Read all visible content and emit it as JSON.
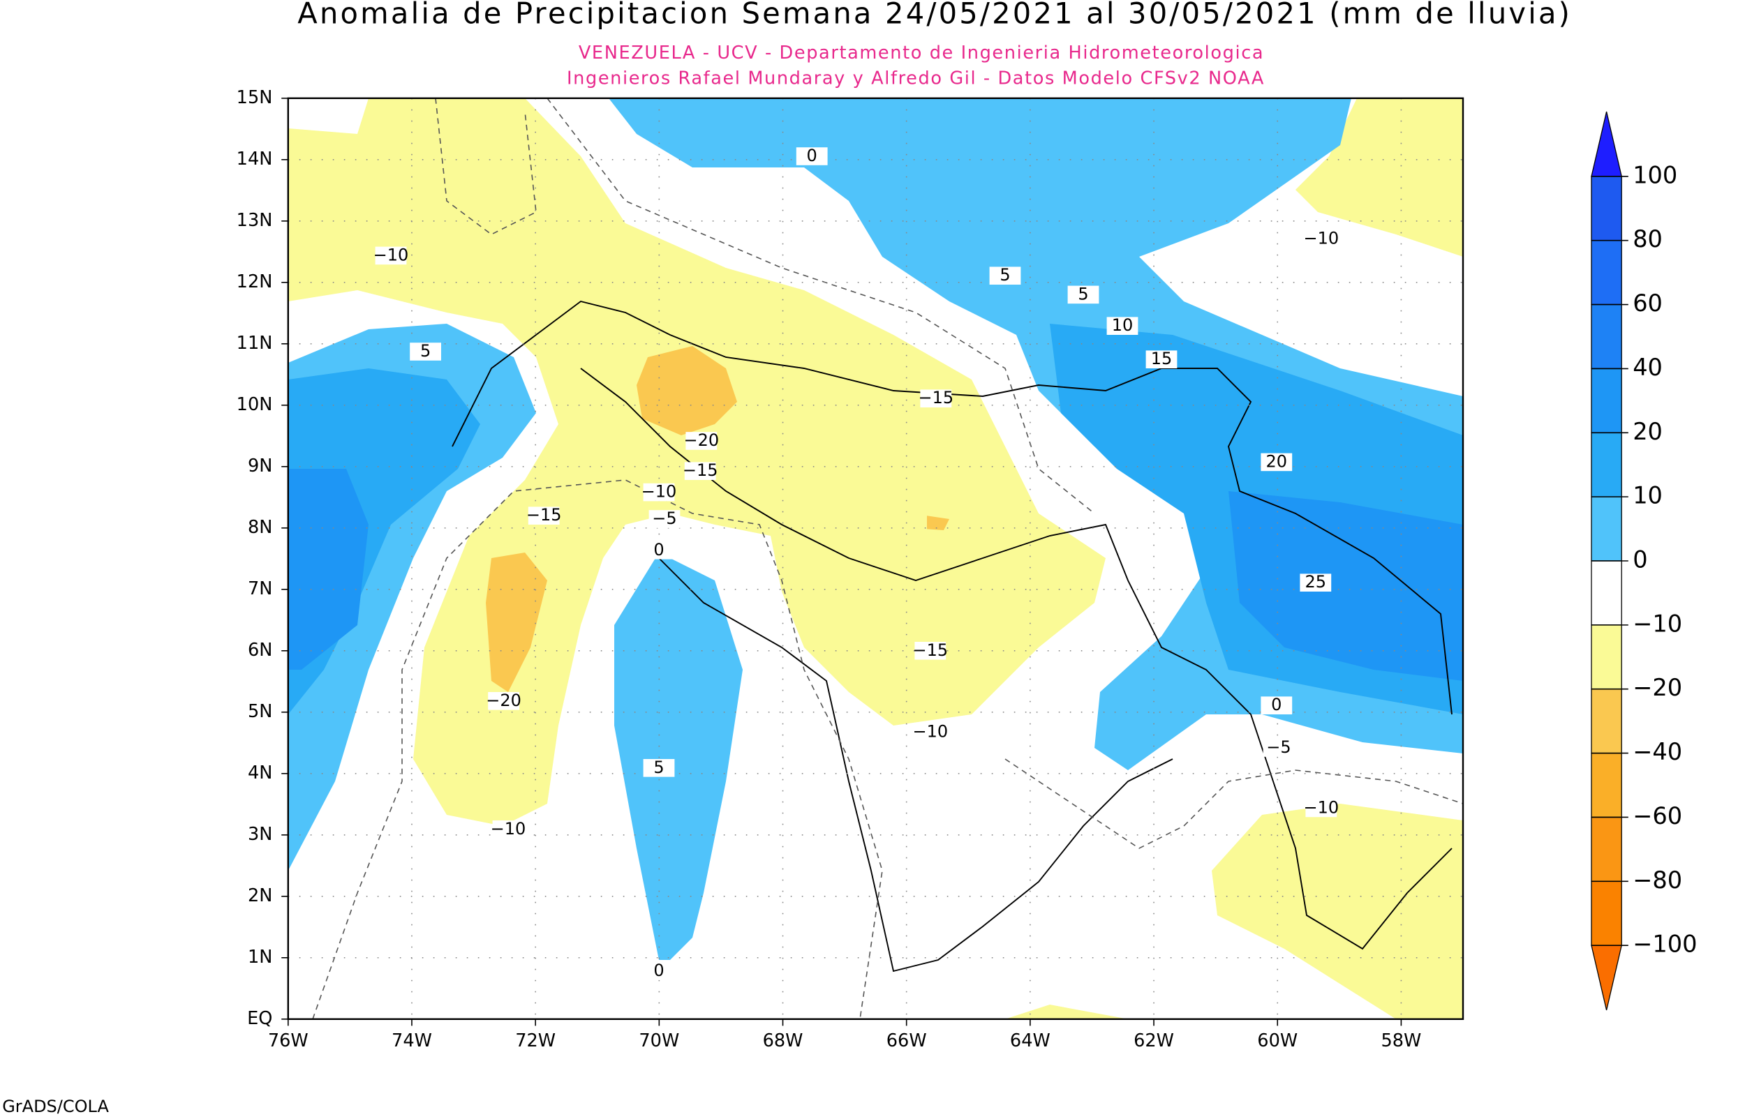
{
  "header": {
    "title": "Anomalia de Precipitacion Semana 24/05/2021 al 30/05/2021 (mm de lluvia)",
    "subtitle_lines": [
      "VENEZUELA - UCV - Departamento de Ingenieria Hidrometeorologica",
      "Ingenieros Rafael Mundaray y Alfredo Gil - Datos Modelo CFSv2 NOAA"
    ]
  },
  "map": {
    "lat_labels": [
      "15N",
      "14N",
      "13N",
      "12N",
      "11N",
      "10N",
      "9N",
      "8N",
      "7N",
      "6N",
      "5N",
      "4N",
      "3N",
      "2N",
      "1N",
      "EQ"
    ],
    "lon_labels": [
      "76W",
      "74W",
      "72W",
      "70W",
      "68W",
      "66W",
      "64W",
      "62W",
      "60W",
      "58W"
    ],
    "contour_labels": [
      "0",
      "5",
      "5",
      "10",
      "15",
      "−10",
      "5",
      "−15",
      "−20",
      "−15",
      "−10",
      "−15",
      "−5",
      "0",
      "20",
      "25",
      "−10",
      "−15",
      "−20",
      "0",
      "−10",
      "5",
      "−5",
      "−10",
      "−10",
      "0"
    ]
  },
  "colorbar": {
    "labels": [
      "100",
      "80",
      "60",
      "40",
      "20",
      "10",
      "0",
      "−10",
      "−20",
      "−40",
      "−60",
      "−80",
      "−100"
    ],
    "colors": [
      "#1e1eff",
      "#1e5af0",
      "#1e6ef5",
      "#1e82f5",
      "#1e96f5",
      "#28aaf5",
      "#50c3fa",
      "#ffffff",
      "#fafa96",
      "#fac850",
      "#faaf28",
      "#fa9614",
      "#fa8200",
      "#fa6e00"
    ]
  },
  "footer": "GrADS/COLA"
}
